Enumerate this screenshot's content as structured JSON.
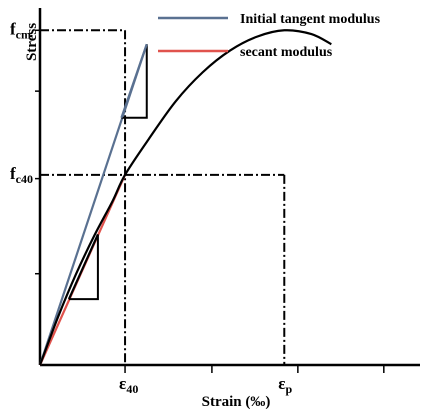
{
  "chart_data": {
    "type": "line",
    "title": "",
    "xlabel": "Strain (‰)",
    "ylabel": "Stress",
    "xlim": [
      0,
      420
    ],
    "ylim": [
      0,
      280
    ],
    "x_ticks": [
      0,
      94,
      190,
      285,
      380
    ],
    "y_ticks": [
      0,
      72,
      147,
      216,
      264
    ],
    "x_markers": [
      {
        "x": 94,
        "main": "ε",
        "sub": "40"
      },
      {
        "x": 270,
        "main": "ε",
        "sub": "p"
      }
    ],
    "y_markers": [
      {
        "y": 264,
        "main": "f",
        "sub": "cm"
      },
      {
        "y": 150,
        "main": "f",
        "sub": "c40"
      }
    ],
    "legend": {
      "placement": "top-right",
      "entries": [
        {
          "label": "Initial tangent modulus",
          "color": "#5a7191"
        },
        {
          "label": "secant modulus",
          "color": "#e0534d"
        }
      ]
    },
    "series": [
      {
        "name": "Initial tangent modulus",
        "color": "#5a7191",
        "x": [
          0,
          118
        ],
        "y": [
          0,
          253
        ]
      },
      {
        "name": "secant modulus",
        "color": "#e0534d",
        "x": [
          0,
          94
        ],
        "y": [
          0,
          150
        ]
      },
      {
        "name": "",
        "color": "#000000",
        "x": [
          0,
          20,
          40,
          60,
          80,
          94,
          120,
          150,
          180,
          210,
          240,
          270,
          300,
          322
        ],
        "y": [
          0,
          38,
          72,
          102,
          129,
          150,
          178,
          208,
          231,
          248,
          259,
          264,
          261,
          253
        ]
      }
    ],
    "triangles": [
      {
        "color": "#5a7191",
        "points": [
          [
            90,
            195
          ],
          [
            118,
            195
          ],
          [
            118,
            253
          ]
        ],
        "line_x": [
          90,
          118
        ],
        "line_y": [
          195,
          253
        ]
      },
      {
        "color": "#000000",
        "points": [
          [
            32,
            52
          ],
          [
            64,
            52
          ],
          [
            64,
            103
          ]
        ],
        "line_x": [
          32,
          64
        ],
        "line_y": [
          52,
          103
        ]
      }
    ],
    "grid": false
  }
}
